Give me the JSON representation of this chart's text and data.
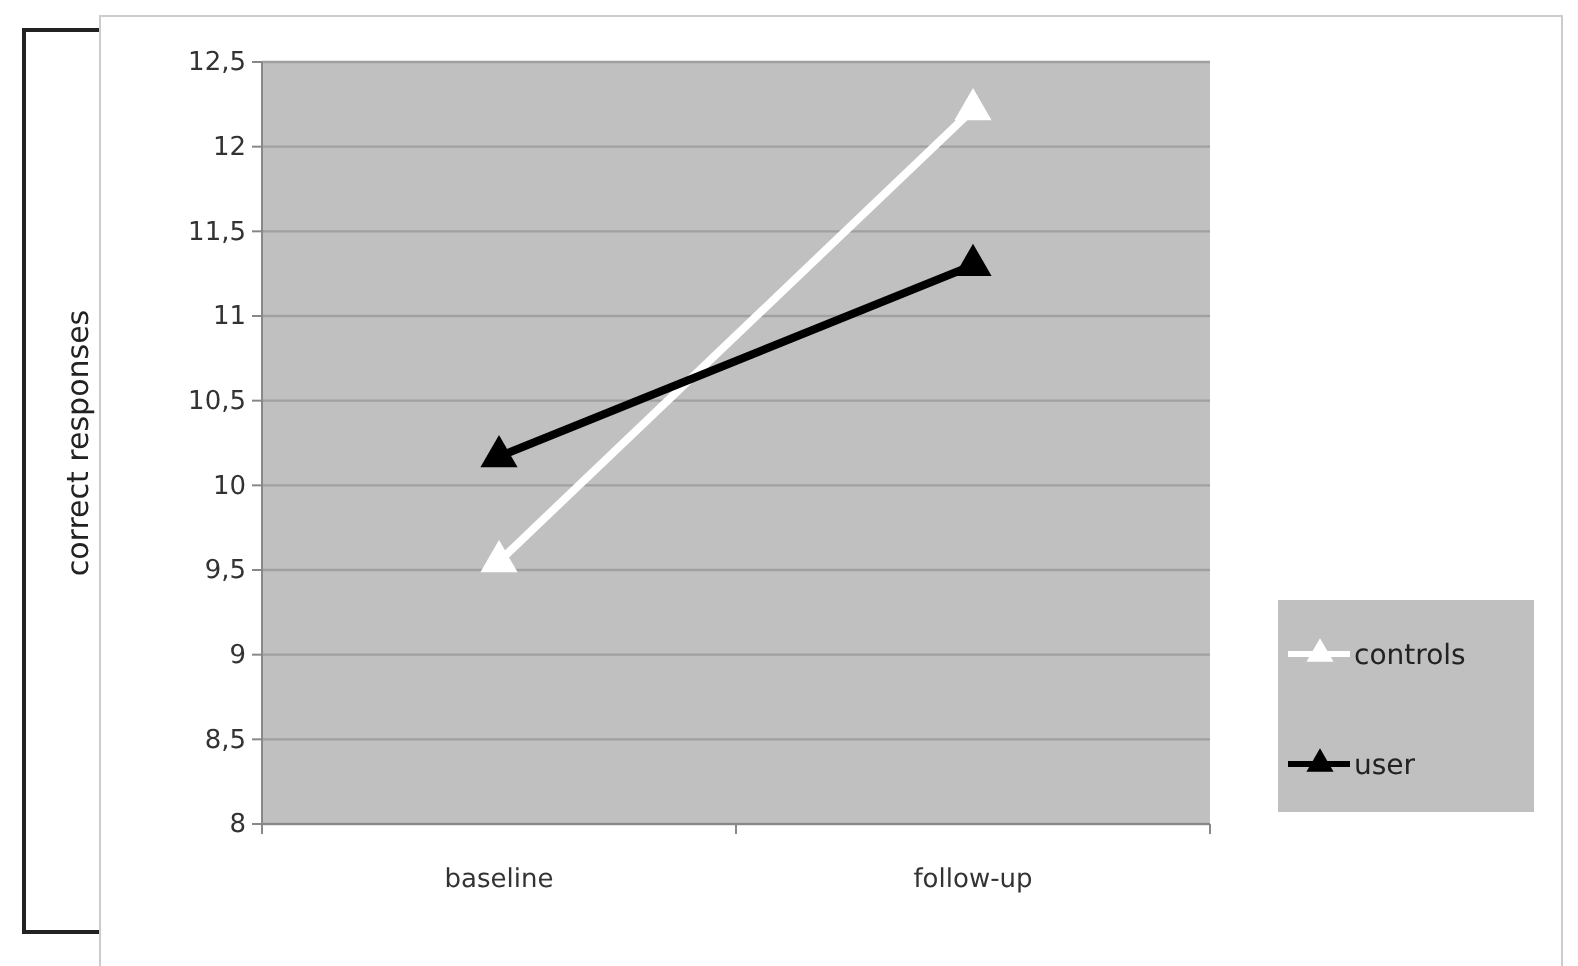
{
  "chart_data": {
    "type": "line",
    "ylabel": "correct responses",
    "categories": [
      "baseline",
      "follow-up"
    ],
    "series": [
      {
        "name": "controls",
        "color": "#ffffff",
        "values": [
          9.55,
          12.22
        ]
      },
      {
        "name": "user",
        "color": "#000000",
        "values": [
          10.17,
          11.3
        ]
      }
    ],
    "ylim": [
      8,
      12.5
    ],
    "yticks": [
      8,
      {
        "value": 8.5,
        "label": "8,5"
      },
      9,
      {
        "value": 9.5,
        "label": "9,5"
      },
      10,
      {
        "value": 10.5,
        "label": "10,5"
      },
      11,
      {
        "value": 11.5,
        "label": "11,5"
      },
      12,
      {
        "value": 12.5,
        "label": "12,5"
      }
    ],
    "grid": "y",
    "legend": "right",
    "marker": "triangle",
    "line_style": "solid"
  }
}
